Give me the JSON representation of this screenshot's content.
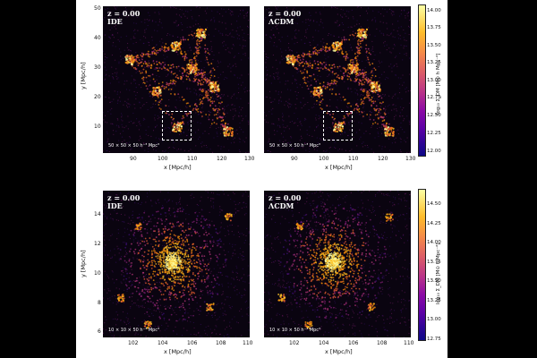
{
  "panels_top": {
    "left": {
      "z": "z = 0.00",
      "model": "IDE",
      "scale": "50 × 50 × 50 h⁻³ Mpc³"
    },
    "right": {
      "z": "z = 0.00",
      "model": "ΛCDM",
      "scale": "50 × 50 × 50 h⁻³ Mpc³"
    }
  },
  "panels_bottom": {
    "left": {
      "z": "z = 0.00",
      "model": "IDE",
      "scale": "10 × 10 × 50 h⁻³ Mpc³"
    },
    "right": {
      "z": "z = 0.00",
      "model": "ΛCDM",
      "scale": "10 × 10 × 50 h⁻³ Mpc³"
    }
  },
  "axes_top": {
    "xlabel": "x [Mpc/h]",
    "ylabel": "y [Mpc/h]",
    "xticks": [
      "90",
      "100",
      "110",
      "120",
      "130"
    ],
    "yticks": [
      "50",
      "40",
      "30",
      "20",
      "10"
    ],
    "cbar_ticks": [
      "14.00",
      "13.75",
      "13.50",
      "13.25",
      "13.00",
      "12.75",
      "12.50",
      "12.25",
      "12.00"
    ],
    "cbar_label": "log₁₀ Σ_DM [M⊙ h Mpc⁻²]"
  },
  "axes_bottom": {
    "xlabel": "x [Mpc/h]",
    "ylabel": "y [Mpc/h]",
    "xticks": [
      "102",
      "104",
      "106",
      "108",
      "110"
    ],
    "yticks": [
      "14",
      "12",
      "10",
      "8",
      "6"
    ],
    "cbar_ticks": [
      "14.50",
      "14.25",
      "14.00",
      "13.75",
      "13.50",
      "13.25",
      "13.00",
      "12.75"
    ],
    "cbar_label": "log₁₀ Σ_DM [M⊙ h Mpc⁻²]"
  },
  "colors": {
    "cmap_low": "#0d0887",
    "cmap_mid": "#db5c68",
    "cmap_high": "#fcffa4",
    "background": "#0a0410"
  }
}
